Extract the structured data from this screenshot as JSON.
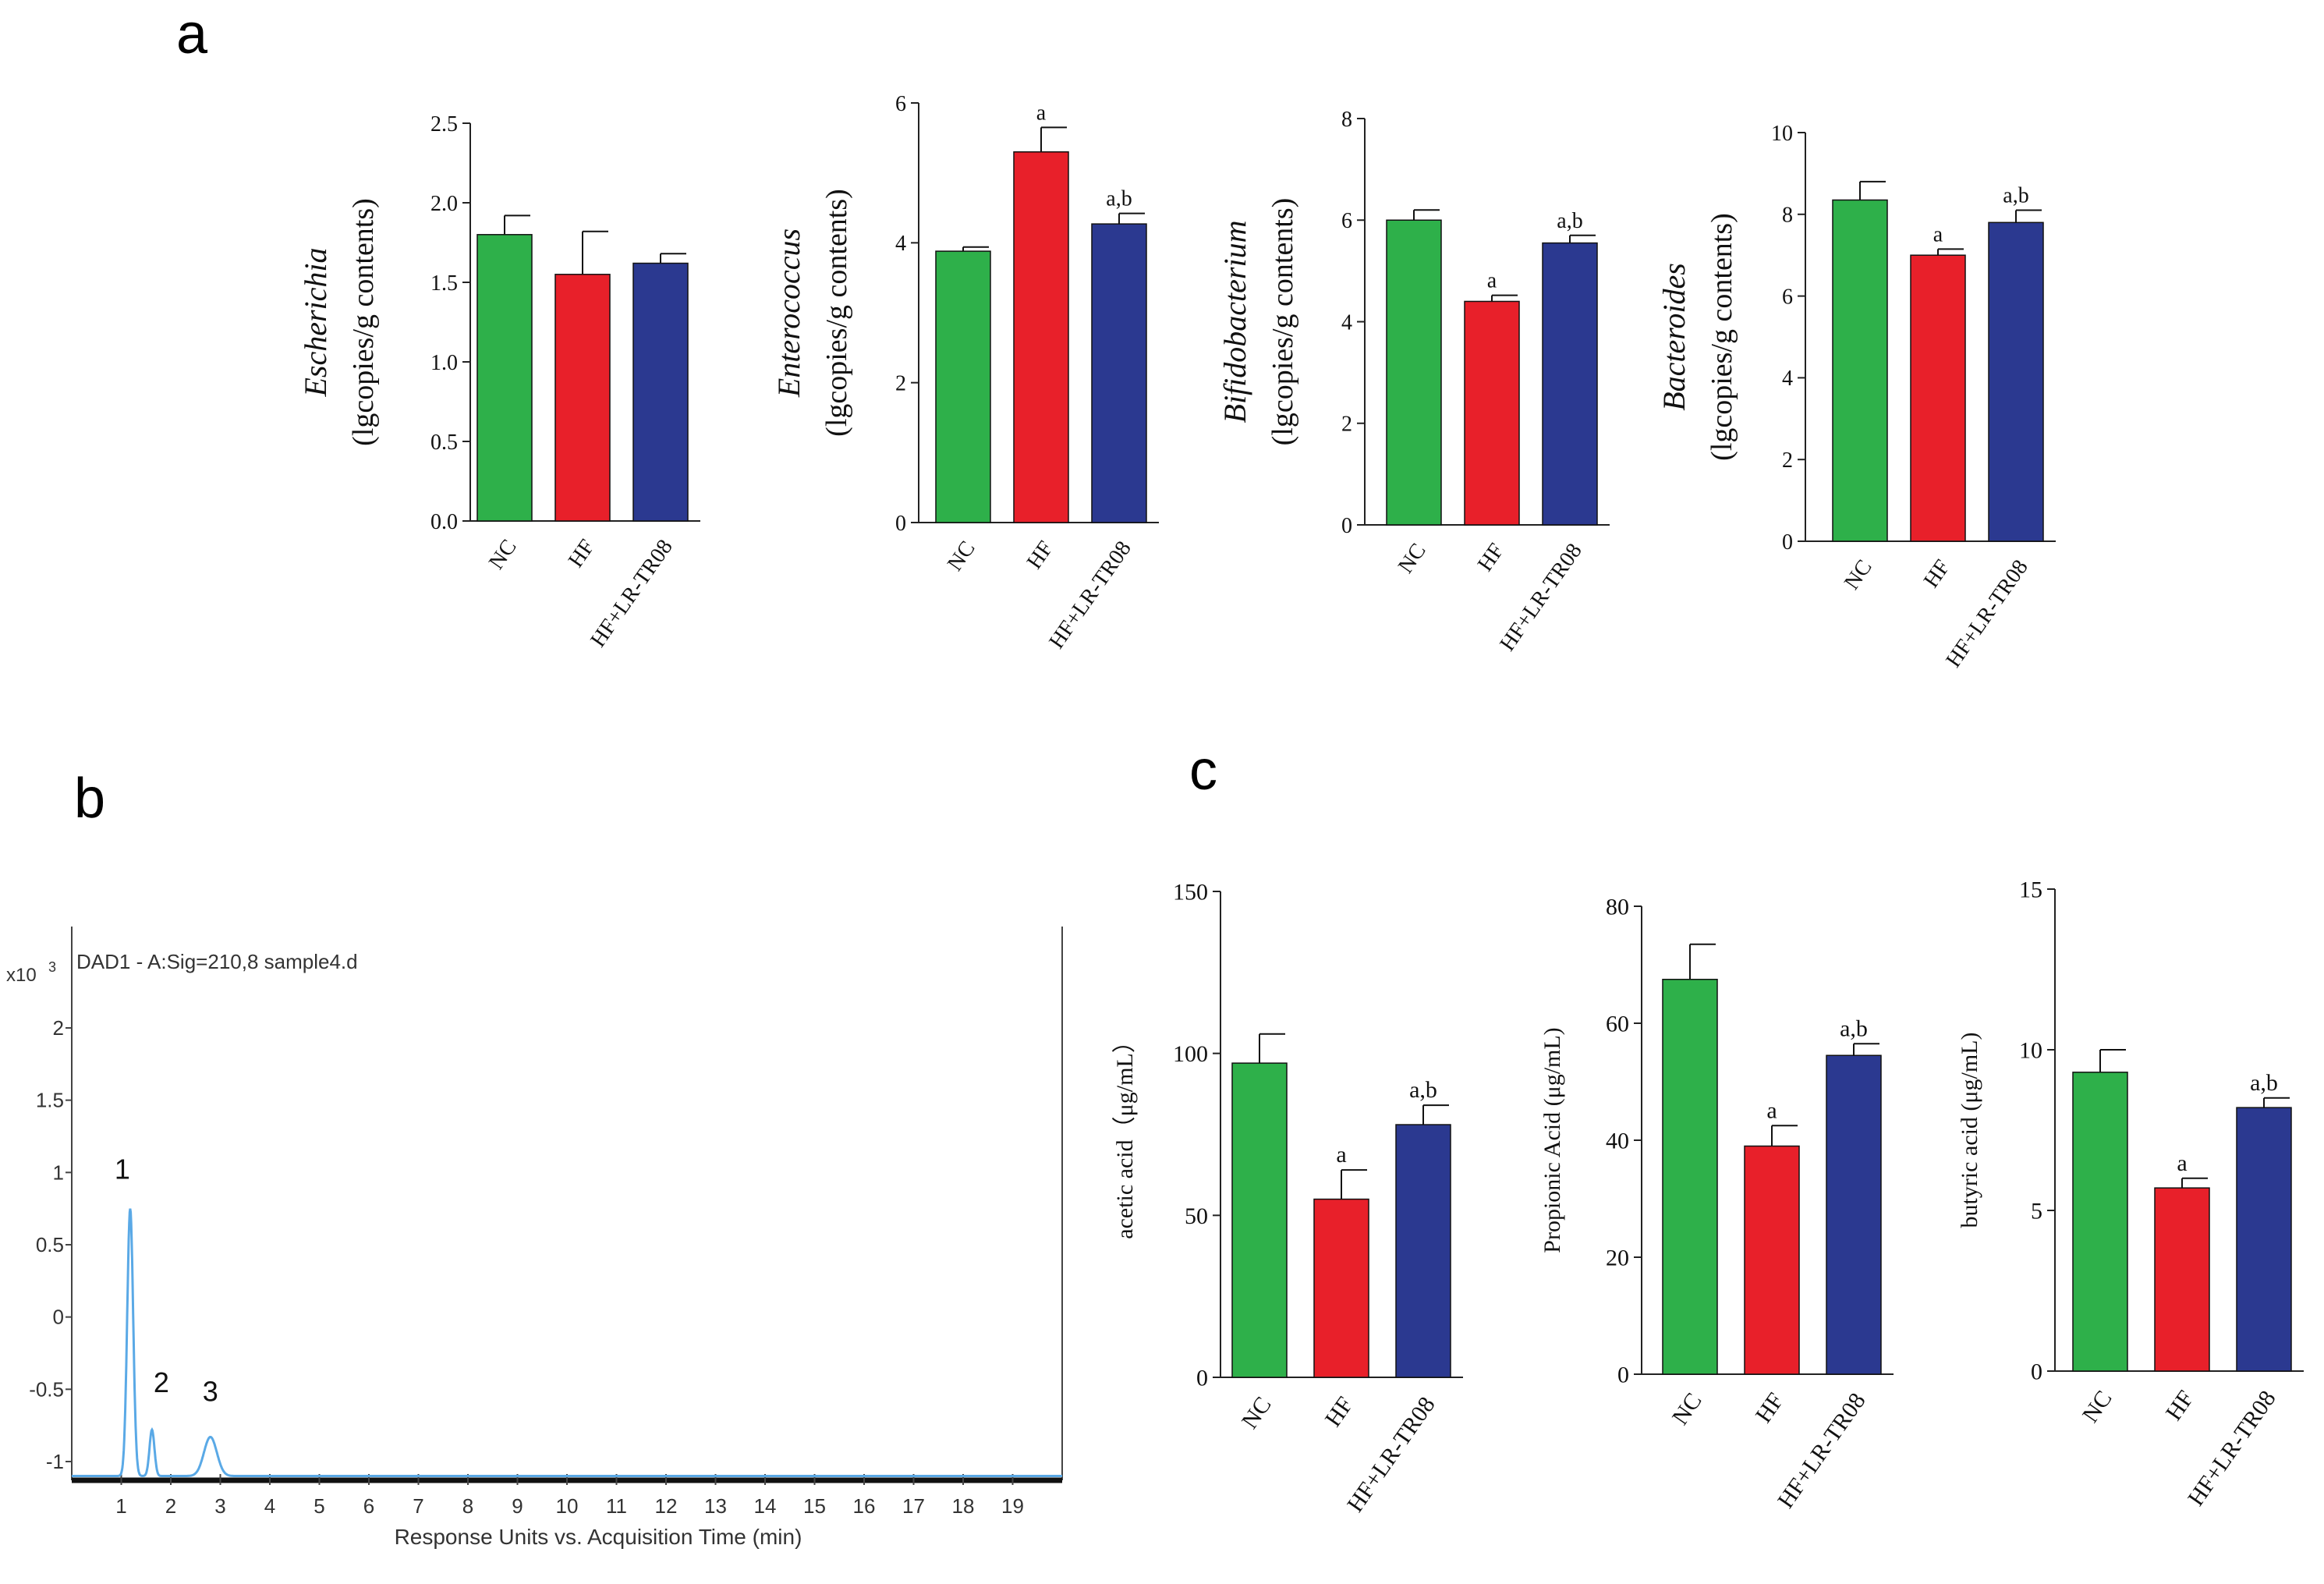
{
  "panels": {
    "a": "a",
    "b": "b",
    "c": "c"
  },
  "colors": {
    "NC": "#2eb04a",
    "HF": "#e8202a",
    "HF+LR-TR08": "#2b3990",
    "chromatogram": "#5aa9e6"
  },
  "chart_data": [
    {
      "type": "bar",
      "panel": "a",
      "categories": [
        "NC",
        "HF",
        "HF+LR-TR08"
      ],
      "values": [
        1.8,
        1.55,
        1.62
      ],
      "errors": [
        0.12,
        0.27,
        0.06
      ],
      "annotations": [
        "",
        "",
        ""
      ],
      "ylabel_italic": "Escherichia",
      "ylabel": "(lgcopies/g contents)",
      "ylim": [
        0,
        2.5
      ],
      "ticks": [
        "0.0",
        "0.5",
        "1.0",
        "1.5",
        "2.0",
        "2.5"
      ],
      "tick_values": [
        0,
        0.5,
        1.0,
        1.5,
        2.0,
        2.5
      ]
    },
    {
      "type": "bar",
      "panel": "a",
      "categories": [
        "NC",
        "HF",
        "HF+LR-TR08"
      ],
      "values": [
        3.88,
        5.3,
        4.27
      ],
      "errors": [
        0.06,
        0.35,
        0.15
      ],
      "annotations": [
        "",
        "a",
        "a,b"
      ],
      "ylabel_italic": "Enterococcus",
      "ylabel": "(lgcopies/g contents)",
      "ylim": [
        0,
        6
      ],
      "ticks": [
        "0",
        "2",
        "4",
        "6"
      ],
      "tick_values": [
        0,
        2,
        4,
        6
      ]
    },
    {
      "type": "bar",
      "panel": "a",
      "categories": [
        "NC",
        "HF",
        "HF+LR-TR08"
      ],
      "values": [
        6.0,
        4.4,
        5.55
      ],
      "errors": [
        0.2,
        0.12,
        0.15
      ],
      "annotations": [
        "",
        "a",
        "a,b"
      ],
      "ylabel_italic": "Bifidobacterium",
      "ylabel": "(lgcopies/g contents)",
      "ylim": [
        0,
        8
      ],
      "ticks": [
        "0",
        "2",
        "4",
        "6",
        "8"
      ],
      "tick_values": [
        0,
        2,
        4,
        6,
        8
      ]
    },
    {
      "type": "bar",
      "panel": "a",
      "categories": [
        "NC",
        "HF",
        "HF+LR-TR08"
      ],
      "values": [
        8.35,
        7.0,
        7.8
      ],
      "errors": [
        0.45,
        0.15,
        0.3
      ],
      "annotations": [
        "",
        "a",
        "a,b"
      ],
      "ylabel_italic": "Bacteroides",
      "ylabel": "(lgcopies/g contents)",
      "ylim": [
        0,
        10
      ],
      "ticks": [
        "0",
        "2",
        "4",
        "6",
        "8",
        "10"
      ],
      "tick_values": [
        0,
        2,
        4,
        6,
        8,
        10
      ]
    },
    {
      "type": "line",
      "panel": "b",
      "title": "DAD1 - A:Sig=210,8 sample4.d",
      "xlabel": "Response Units vs. Acquisition Time (min)",
      "y_multiplier": "x10",
      "y_exponent": "3",
      "xlim": [
        0,
        20
      ],
      "x_ticks": [
        1,
        2,
        3,
        4,
        5,
        6,
        7,
        8,
        9,
        10,
        11,
        12,
        13,
        14,
        15,
        16,
        17,
        18,
        19
      ],
      "ylim": [
        -1.15,
        2.5
      ],
      "y_ticks": [
        "2",
        "1.5",
        "1",
        "0.5",
        "0",
        "-0.5",
        "-1"
      ],
      "y_tick_values": [
        2,
        1.5,
        1,
        0.5,
        0,
        -0.5,
        -1
      ],
      "baseline": -1.1,
      "peaks": [
        {
          "label": "1",
          "time": 1.18,
          "height": 0.75,
          "width": 0.06
        },
        {
          "label": "2",
          "time": 1.62,
          "height": -0.78,
          "width": 0.05
        },
        {
          "label": "3",
          "time": 2.8,
          "height": -0.83,
          "width": 0.13
        }
      ]
    },
    {
      "type": "bar",
      "panel": "c",
      "categories": [
        "NC",
        "HF",
        "HF+LR-TR08"
      ],
      "values": [
        97,
        55,
        78
      ],
      "errors": [
        9,
        9,
        6
      ],
      "annotations": [
        "",
        "a",
        "a,b"
      ],
      "ylabel": "acetic acid（μg/mL）",
      "ylim": [
        0,
        150
      ],
      "ticks": [
        "0",
        "50",
        "100",
        "150"
      ],
      "tick_values": [
        0,
        50,
        100,
        150
      ]
    },
    {
      "type": "bar",
      "panel": "c",
      "categories": [
        "NC",
        "HF",
        "HF+LR-TR08"
      ],
      "values": [
        67.5,
        39,
        54.5
      ],
      "errors": [
        6,
        3.5,
        2
      ],
      "annotations": [
        "",
        "a",
        "a,b"
      ],
      "ylabel": "Propionic Acid (μg/mL)",
      "ylim": [
        0,
        80
      ],
      "ticks": [
        "0",
        "20",
        "40",
        "60",
        "80"
      ],
      "tick_values": [
        0,
        20,
        40,
        60,
        80
      ]
    },
    {
      "type": "bar",
      "panel": "c",
      "categories": [
        "NC",
        "HF",
        "HF+LR-TR08"
      ],
      "values": [
        9.3,
        5.7,
        8.2
      ],
      "errors": [
        0.7,
        0.3,
        0.3
      ],
      "annotations": [
        "",
        "a",
        "a,b"
      ],
      "ylabel": "butyric acid (μg/mL)",
      "ylim": [
        0,
        15
      ],
      "ticks": [
        "0",
        "5",
        "10",
        "15"
      ],
      "tick_values": [
        0,
        5,
        10,
        15
      ]
    }
  ]
}
